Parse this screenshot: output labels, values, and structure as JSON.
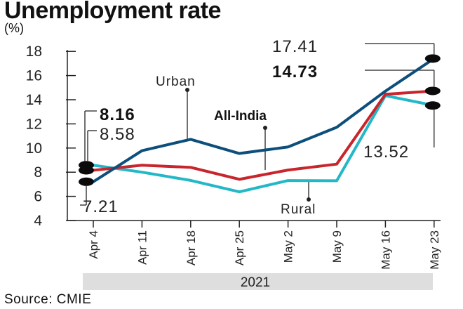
{
  "chart_data": {
    "type": "line",
    "title": "Unemployment rate",
    "unit": "(%)",
    "source": "Source: CMIE",
    "year_label": "2021",
    "categories": [
      "Apr 4",
      "Apr 11",
      "Apr 18",
      "Apr 25",
      "May 2",
      "May 9",
      "May 16",
      "May 23"
    ],
    "ylim": [
      4,
      18
    ],
    "yticks": [
      4,
      6,
      8,
      10,
      12,
      14,
      16,
      18
    ],
    "grid": false,
    "series": [
      {
        "name": "Urban",
        "color": "#0d4f7c",
        "values": [
          7.21,
          9.78,
          10.72,
          9.55,
          10.09,
          11.72,
          14.71,
          17.41
        ]
      },
      {
        "name": "All-India",
        "color": "#c8252c",
        "values": [
          8.16,
          8.58,
          8.4,
          7.41,
          8.18,
          8.67,
          14.45,
          14.73
        ]
      },
      {
        "name": "Rural",
        "color": "#22b8c8",
        "values": [
          8.58,
          8.0,
          7.32,
          6.37,
          7.31,
          7.29,
          14.34,
          13.52
        ]
      }
    ],
    "annotations": [
      {
        "text": "8.16",
        "bold": true
      },
      {
        "text": "8.58",
        "bold": false
      },
      {
        "text": "7.21",
        "bold": false
      },
      {
        "text": "17.41",
        "bold": false
      },
      {
        "text": "14.73",
        "bold": true
      },
      {
        "text": "13.52",
        "bold": false
      }
    ]
  }
}
